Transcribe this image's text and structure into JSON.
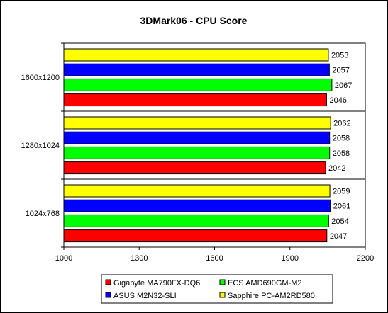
{
  "chart_data": {
    "type": "bar",
    "orientation": "horizontal",
    "title": "3DMark06 - CPU Score",
    "xlabel": "",
    "ylabel": "",
    "xlim": [
      1000,
      2200
    ],
    "xticks": [
      1000,
      1300,
      1600,
      1900,
      2200
    ],
    "categories": [
      "1600x1200",
      "1280x1024",
      "1024x768"
    ],
    "series": [
      {
        "name": "Gigabyte MA790FX-DQ6",
        "color": "#ff0000",
        "values": [
          2046,
          2042,
          2047
        ]
      },
      {
        "name": "ECS AMD690GM-M2",
        "color": "#00ff00",
        "values": [
          2067,
          2058,
          2054
        ]
      },
      {
        "name": "ASUS M2N32-SLI",
        "color": "#0000ff",
        "values": [
          2057,
          2058,
          2061
        ]
      },
      {
        "name": "Sapphire PC-AM2RD580",
        "color": "#ffff00",
        "values": [
          2053,
          2062,
          2059
        ]
      }
    ],
    "grid": false,
    "legend_position": "bottom",
    "plot_background": "#ffffff"
  }
}
